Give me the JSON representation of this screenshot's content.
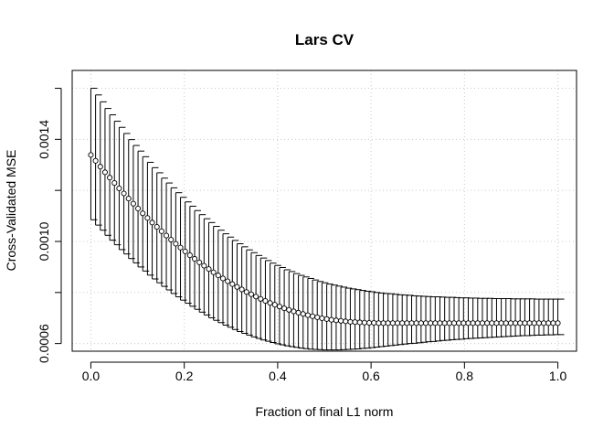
{
  "chart_data": {
    "type": "scatter",
    "title": "Lars CV",
    "xlabel": "Fraction of final L1 norm",
    "ylabel": "Cross-Validated MSE",
    "xlim": [
      -0.04,
      1.04
    ],
    "ylim": [
      0.00057,
      0.00167
    ],
    "x_ticks": [
      0.0,
      0.2,
      0.4,
      0.6,
      0.8,
      1.0
    ],
    "x_tick_labels": [
      "0.0",
      "0.2",
      "0.4",
      "0.6",
      "0.8",
      "1.0"
    ],
    "y_ticks": [
      0.0006,
      0.001,
      0.0014
    ],
    "y_tick_labels": [
      "0.0006",
      "0.0010",
      "0.0014"
    ],
    "grid_x": [
      0.0,
      0.2,
      0.4,
      0.6,
      0.8,
      1.0
    ],
    "grid_y": [
      0.0006,
      0.0008,
      0.001,
      0.0012,
      0.0014,
      0.0016
    ],
    "grid": true,
    "marker": "open-circle",
    "error_bars": true,
    "x": [
      0.0,
      0.0101,
      0.0202,
      0.0303,
      0.0404,
      0.0505,
      0.0606,
      0.0707,
      0.0808,
      0.0909,
      0.101,
      0.1111,
      0.1212,
      0.1313,
      0.1414,
      0.1515,
      0.1616,
      0.1717,
      0.1818,
      0.1919,
      0.202,
      0.2121,
      0.2222,
      0.2323,
      0.2424,
      0.2525,
      0.2626,
      0.2727,
      0.2828,
      0.2929,
      0.303,
      0.3131,
      0.3232,
      0.3333,
      0.3434,
      0.3535,
      0.3636,
      0.3737,
      0.3838,
      0.3939,
      0.404,
      0.4141,
      0.4242,
      0.4343,
      0.4444,
      0.4545,
      0.4646,
      0.4747,
      0.4848,
      0.4949,
      0.5051,
      0.5152,
      0.5253,
      0.5354,
      0.5455,
      0.5556,
      0.5657,
      0.5758,
      0.5859,
      0.596,
      0.6061,
      0.6162,
      0.6263,
      0.6364,
      0.6465,
      0.6566,
      0.6667,
      0.6768,
      0.6869,
      0.697,
      0.7071,
      0.7172,
      0.7273,
      0.7374,
      0.7475,
      0.7576,
      0.7677,
      0.7778,
      0.7879,
      0.798,
      0.8081,
      0.8182,
      0.8283,
      0.8384,
      0.8485,
      0.8586,
      0.8687,
      0.8788,
      0.8889,
      0.899,
      0.9091,
      0.9192,
      0.9293,
      0.9394,
      0.9495,
      0.9596,
      0.9697,
      0.9798,
      0.9899,
      1.0
    ],
    "y": [
      0.001339,
      0.001316,
      0.001293,
      0.001271,
      0.00125,
      0.001229,
      0.001208,
      0.001188,
      0.001168,
      0.001148,
      0.001129,
      0.00111,
      0.001092,
      0.001074,
      0.001057,
      0.00104,
      0.001023,
      0.001007,
      0.000991,
      0.000976,
      0.000961,
      0.000946,
      0.000932,
      0.000918,
      0.000905,
      0.000892,
      0.000879,
      0.000867,
      0.000855,
      0.000844,
      0.000833,
      0.000822,
      0.000812,
      0.000802,
      0.000793,
      0.000784,
      0.000775,
      0.000767,
      0.000759,
      0.000752,
      0.000745,
      0.000738,
      0.000732,
      0.000726,
      0.000721,
      0.000716,
      0.000711,
      0.000707,
      0.000703,
      0.000699,
      0.000696,
      0.000693,
      0.000691,
      0.000689,
      0.000687,
      0.000685,
      0.000684,
      0.000683,
      0.000682,
      0.000681,
      0.000681,
      0.00068,
      0.00068,
      0.00068,
      0.00068,
      0.00068,
      0.00068,
      0.00068,
      0.00068,
      0.00068,
      0.00068,
      0.00068,
      0.00068,
      0.00068,
      0.00068,
      0.00068,
      0.00068,
      0.00068,
      0.00068,
      0.00068,
      0.00068,
      0.00068,
      0.00068,
      0.00068,
      0.00068,
      0.00068,
      0.00068,
      0.00068,
      0.00068,
      0.00068,
      0.00068,
      0.00068,
      0.00068,
      0.00068,
      0.00068,
      0.00068,
      0.00068,
      0.00068,
      0.00068,
      0.00068
    ],
    "y_upper": [
      0.0016,
      0.001574,
      0.001547,
      0.001521,
      0.001496,
      0.001471,
      0.001447,
      0.001423,
      0.001399,
      0.001376,
      0.001354,
      0.001332,
      0.00131,
      0.001289,
      0.001269,
      0.001248,
      0.001229,
      0.00121,
      0.001191,
      0.001173,
      0.001155,
      0.001138,
      0.001121,
      0.001105,
      0.001089,
      0.001074,
      0.001059,
      0.001044,
      0.00103,
      0.001017,
      0.001004,
      0.000991,
      0.000979,
      0.000967,
      0.000956,
      0.000945,
      0.000935,
      0.000925,
      0.000915,
      0.000906,
      0.000898,
      0.000889,
      0.000882,
      0.000874,
      0.000867,
      0.000861,
      0.000855,
      0.000849,
      0.000843,
      0.000838,
      0.000833,
      0.000829,
      0.000825,
      0.000821,
      0.000817,
      0.000814,
      0.000811,
      0.000808,
      0.000805,
      0.000803,
      0.0008,
      0.000798,
      0.000796,
      0.000795,
      0.000793,
      0.000791,
      0.00079,
      0.000789,
      0.000787,
      0.000786,
      0.000785,
      0.000784,
      0.000783,
      0.000783,
      0.000782,
      0.000781,
      0.000781,
      0.00078,
      0.000779,
      0.000779,
      0.000778,
      0.000778,
      0.000777,
      0.000777,
      0.000777,
      0.000776,
      0.000776,
      0.000776,
      0.000776,
      0.000775,
      0.000775,
      0.000775,
      0.000775,
      0.000775,
      0.000774,
      0.000774,
      0.000774,
      0.000774,
      0.000774,
      0.000774
    ],
    "y_lower": [
      0.001085,
      0.001064,
      0.001044,
      0.001024,
      0.001005,
      0.000987,
      0.000968,
      0.000951,
      0.000933,
      0.000916,
      0.0009,
      0.000884,
      0.000868,
      0.000853,
      0.000838,
      0.000824,
      0.00081,
      0.000796,
      0.000783,
      0.00077,
      0.000758,
      0.000746,
      0.000734,
      0.000723,
      0.000712,
      0.000701,
      0.000691,
      0.000682,
      0.000672,
      0.000664,
      0.000655,
      0.000647,
      0.00064,
      0.000633,
      0.000626,
      0.00062,
      0.000614,
      0.000609,
      0.000604,
      0.000599,
      0.000595,
      0.000591,
      0.000588,
      0.000585,
      0.000582,
      0.00058,
      0.000578,
      0.000577,
      0.000576,
      0.000575,
      0.000575,
      0.000575,
      0.000575,
      0.000576,
      0.000577,
      0.000578,
      0.000579,
      0.000581,
      0.000582,
      0.000584,
      0.000586,
      0.000588,
      0.00059,
      0.000592,
      0.000594,
      0.000596,
      0.000598,
      0.0006,
      0.000601,
      0.000603,
      0.000605,
      0.000607,
      0.000608,
      0.00061,
      0.000612,
      0.000613,
      0.000615,
      0.000616,
      0.000617,
      0.000619,
      0.00062,
      0.000621,
      0.000622,
      0.000623,
      0.000624,
      0.000625,
      0.000626,
      0.000627,
      0.000628,
      0.000629,
      0.00063,
      0.000631,
      0.000631,
      0.000632,
      0.000633,
      0.000633,
      0.000634,
      0.000634,
      0.000635,
      0.000635
    ]
  }
}
